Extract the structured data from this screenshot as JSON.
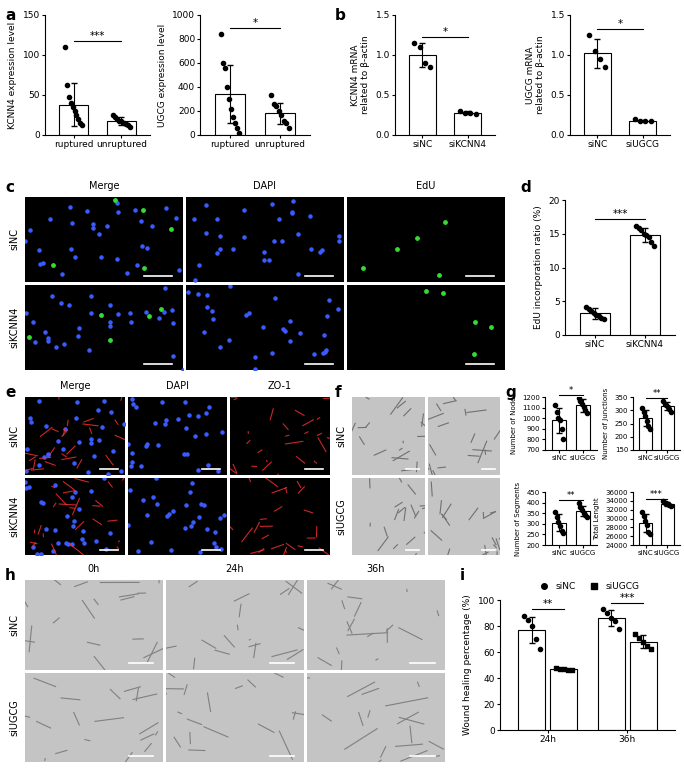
{
  "panel_labels": [
    "a",
    "b",
    "c",
    "d",
    "e",
    "f",
    "g",
    "h",
    "i"
  ],
  "chart_data": [
    {
      "type": "bar",
      "y_label": "KCNN4 expression level",
      "categories": [
        "ruptured",
        "unruptured"
      ],
      "values": [
        38,
        18
      ],
      "error": [
        27,
        5
      ],
      "points": [
        [
          110,
          62,
          48,
          40,
          35,
          30,
          25,
          20,
          15,
          12
        ],
        [
          25,
          22,
          20,
          18,
          17,
          15,
          14,
          12,
          10
        ]
      ],
      "ylim": [
        0,
        150
      ],
      "yticks": [
        0,
        50,
        100,
        150
      ],
      "marker": "circle",
      "significance": [
        {
          "pair": [
            0,
            1
          ],
          "label": "***"
        }
      ]
    },
    {
      "type": "bar",
      "y_label": "UGCG expression level",
      "categories": [
        "ruptured",
        "unruptured"
      ],
      "values": [
        340,
        180
      ],
      "error": [
        240,
        90
      ],
      "points": [
        [
          840,
          600,
          560,
          400,
          300,
          220,
          150,
          100,
          60,
          20
        ],
        [
          330,
          260,
          240,
          200,
          170,
          120,
          100,
          60
        ]
      ],
      "ylim": [
        0,
        1000
      ],
      "yticks": [
        0,
        200,
        400,
        600,
        800,
        1000
      ],
      "marker": "circle",
      "significance": [
        {
          "pair": [
            0,
            1
          ],
          "label": "*"
        }
      ]
    },
    {
      "type": "bar",
      "y_label": "KCNN4 mRNA\nrelated to β-actin",
      "categories": [
        "siNC",
        "siKCNN4"
      ],
      "values": [
        1.0,
        0.28
      ],
      "error": [
        0.15,
        0.02
      ],
      "points": [
        [
          1.15,
          1.1,
          0.9,
          0.85
        ],
        [
          0.3,
          0.28,
          0.27,
          0.26
        ]
      ],
      "ylim": [
        0,
        1.5
      ],
      "yticks": [
        {
          "value": 0,
          "label": "0.0"
        },
        {
          "value": 0.5,
          "label": "0.5"
        },
        {
          "value": 1.0,
          "label": "1.0"
        },
        {
          "value": 1.5,
          "label": "1.5"
        }
      ],
      "marker": "circle",
      "significance": [
        {
          "pair": [
            0,
            1
          ],
          "label": "*"
        }
      ]
    },
    {
      "type": "bar",
      "y_label": "UGCG mRNA\nrelated to β-actin",
      "categories": [
        "siNC",
        "siUGCG"
      ],
      "values": [
        1.02,
        0.18
      ],
      "error": [
        0.18,
        0.01
      ],
      "points": [
        [
          1.25,
          1.05,
          0.95,
          0.85
        ],
        [
          0.2,
          0.18,
          0.18,
          0.17
        ]
      ],
      "ylim": [
        0,
        1.5
      ],
      "yticks": [
        {
          "value": 0,
          "label": "0.0"
        },
        {
          "value": 0.5,
          "label": "0.5"
        },
        {
          "value": 1.0,
          "label": "1.0"
        },
        {
          "value": 1.5,
          "label": "1.5"
        }
      ],
      "marker": "circle",
      "significance": [
        {
          "pair": [
            0,
            1
          ],
          "label": "*"
        }
      ]
    },
    {
      "type": "bar",
      "y_label": "EdU incorporation ratio (%)",
      "categories": [
        "siNC",
        "siKCNN4"
      ],
      "values": [
        3.2,
        14.8
      ],
      "error": [
        0.8,
        1.0
      ],
      "points": [
        [
          4.2,
          3.8,
          3.5,
          3.2,
          3.0,
          2.8,
          2.5,
          2.4
        ],
        [
          16.2,
          15.8,
          15.5,
          15.0,
          14.8,
          14.5,
          13.8,
          13.2
        ]
      ],
      "ylim": [
        0,
        20
      ],
      "yticks": [
        0,
        5,
        10,
        15,
        20
      ],
      "marker": "circle",
      "significance": [
        {
          "pair": [
            0,
            1
          ],
          "label": "***"
        }
      ]
    },
    {
      "type": "bar",
      "y_label": "Number of Nodes",
      "categories": [
        "siNC",
        "siUGCG"
      ],
      "values": [
        980,
        1120
      ],
      "error": [
        120,
        60
      ],
      "points": [
        [
          1120,
          1060,
          1000,
          980,
          900,
          800
        ],
        [
          1190,
          1160,
          1130,
          1110,
          1080,
          1050
        ]
      ],
      "ylim": [
        700,
        1200
      ],
      "yticks": [
        700,
        800,
        900,
        1000,
        1100,
        1200
      ],
      "marker": "circle",
      "significance": [
        {
          "pair": [
            0,
            1
          ],
          "label": "*"
        }
      ]
    },
    {
      "type": "bar",
      "y_label": "Number of Junctions",
      "categories": [
        "siNC",
        "siUGCG"
      ],
      "values": [
        270,
        315
      ],
      "error": [
        30,
        15
      ],
      "points": [
        [
          310,
          295,
          280,
          260,
          240,
          230
        ],
        [
          335,
          325,
          318,
          312,
          305,
          295
        ]
      ],
      "ylim": [
        150,
        350
      ],
      "yticks": [
        150,
        200,
        250,
        300,
        350
      ],
      "marker": "circle",
      "significance": [
        {
          "pair": [
            0,
            1
          ],
          "label": "**"
        }
      ]
    },
    {
      "type": "bar",
      "y_label": "Number of Segments",
      "categories": [
        "siNC",
        "siUGCG"
      ],
      "values": [
        305,
        360
      ],
      "error": [
        40,
        25
      ],
      "points": [
        [
          355,
          330,
          310,
          290,
          265,
          255
        ],
        [
          400,
          380,
          365,
          350,
          340,
          330
        ]
      ],
      "ylim": [
        200,
        450
      ],
      "yticks": [
        200,
        250,
        300,
        350,
        400,
        450
      ],
      "marker": "circle",
      "significance": [
        {
          "pair": [
            0,
            1
          ],
          "label": "**"
        }
      ]
    },
    {
      "type": "bar",
      "y_label": "Total Lenght",
      "categories": [
        "siNC",
        "siUGCG"
      ],
      "values": [
        29000,
        33300
      ],
      "error": [
        2000,
        400
      ],
      "points": [
        [
          31500,
          30500,
          29500,
          28500,
          27000,
          26500
        ],
        [
          33900,
          33600,
          33400,
          33200,
          33000,
          32800
        ]
      ],
      "ylim": [
        24000,
        36000
      ],
      "yticks": [
        24000,
        26000,
        28000,
        30000,
        32000,
        34000,
        36000
      ],
      "marker": "circle",
      "significance": [
        {
          "pair": [
            0,
            1
          ],
          "label": "***"
        }
      ]
    },
    {
      "type": "bar",
      "y_label": "Wound healing percentage (%)",
      "categories": [
        "24h",
        "36h"
      ],
      "series": [
        {
          "name": "siNC",
          "marker": "circle",
          "values": [
            77,
            86
          ],
          "error": [
            10,
            6
          ],
          "points": [
            [
              88,
              85,
              80,
              70,
              62
            ],
            [
              93,
              90,
              86,
              84,
              78
            ]
          ]
        },
        {
          "name": "siUGCG",
          "marker": "square",
          "values": [
            47,
            68
          ],
          "error": [
            1,
            5
          ],
          "points": [
            [
              48,
              47,
              47,
              46,
              46
            ],
            [
              74,
              71,
              68,
              65,
              62
            ]
          ]
        }
      ],
      "ylim": [
        0,
        100
      ],
      "yticks": [
        0,
        20,
        40,
        60,
        80,
        100
      ],
      "legend": "upper center",
      "significance": [
        {
          "category": 0,
          "label": "**"
        },
        {
          "category": 1,
          "label": "***"
        }
      ]
    }
  ],
  "image_panels": [
    {
      "columns": [
        "Merge",
        "DAPI",
        "EdU"
      ],
      "rows": [
        "siNC",
        "siKCNN4"
      ]
    },
    {
      "columns": [
        "Merge",
        "DAPI",
        "ZO-1"
      ],
      "rows": [
        "siNC",
        "siKCNN4"
      ]
    },
    {
      "rows": [
        "siNC",
        "siUGCG"
      ]
    },
    {
      "columns": [
        "0h",
        "24h",
        "36h"
      ],
      "rows": [
        "siNC",
        "siUGCG"
      ]
    }
  ]
}
